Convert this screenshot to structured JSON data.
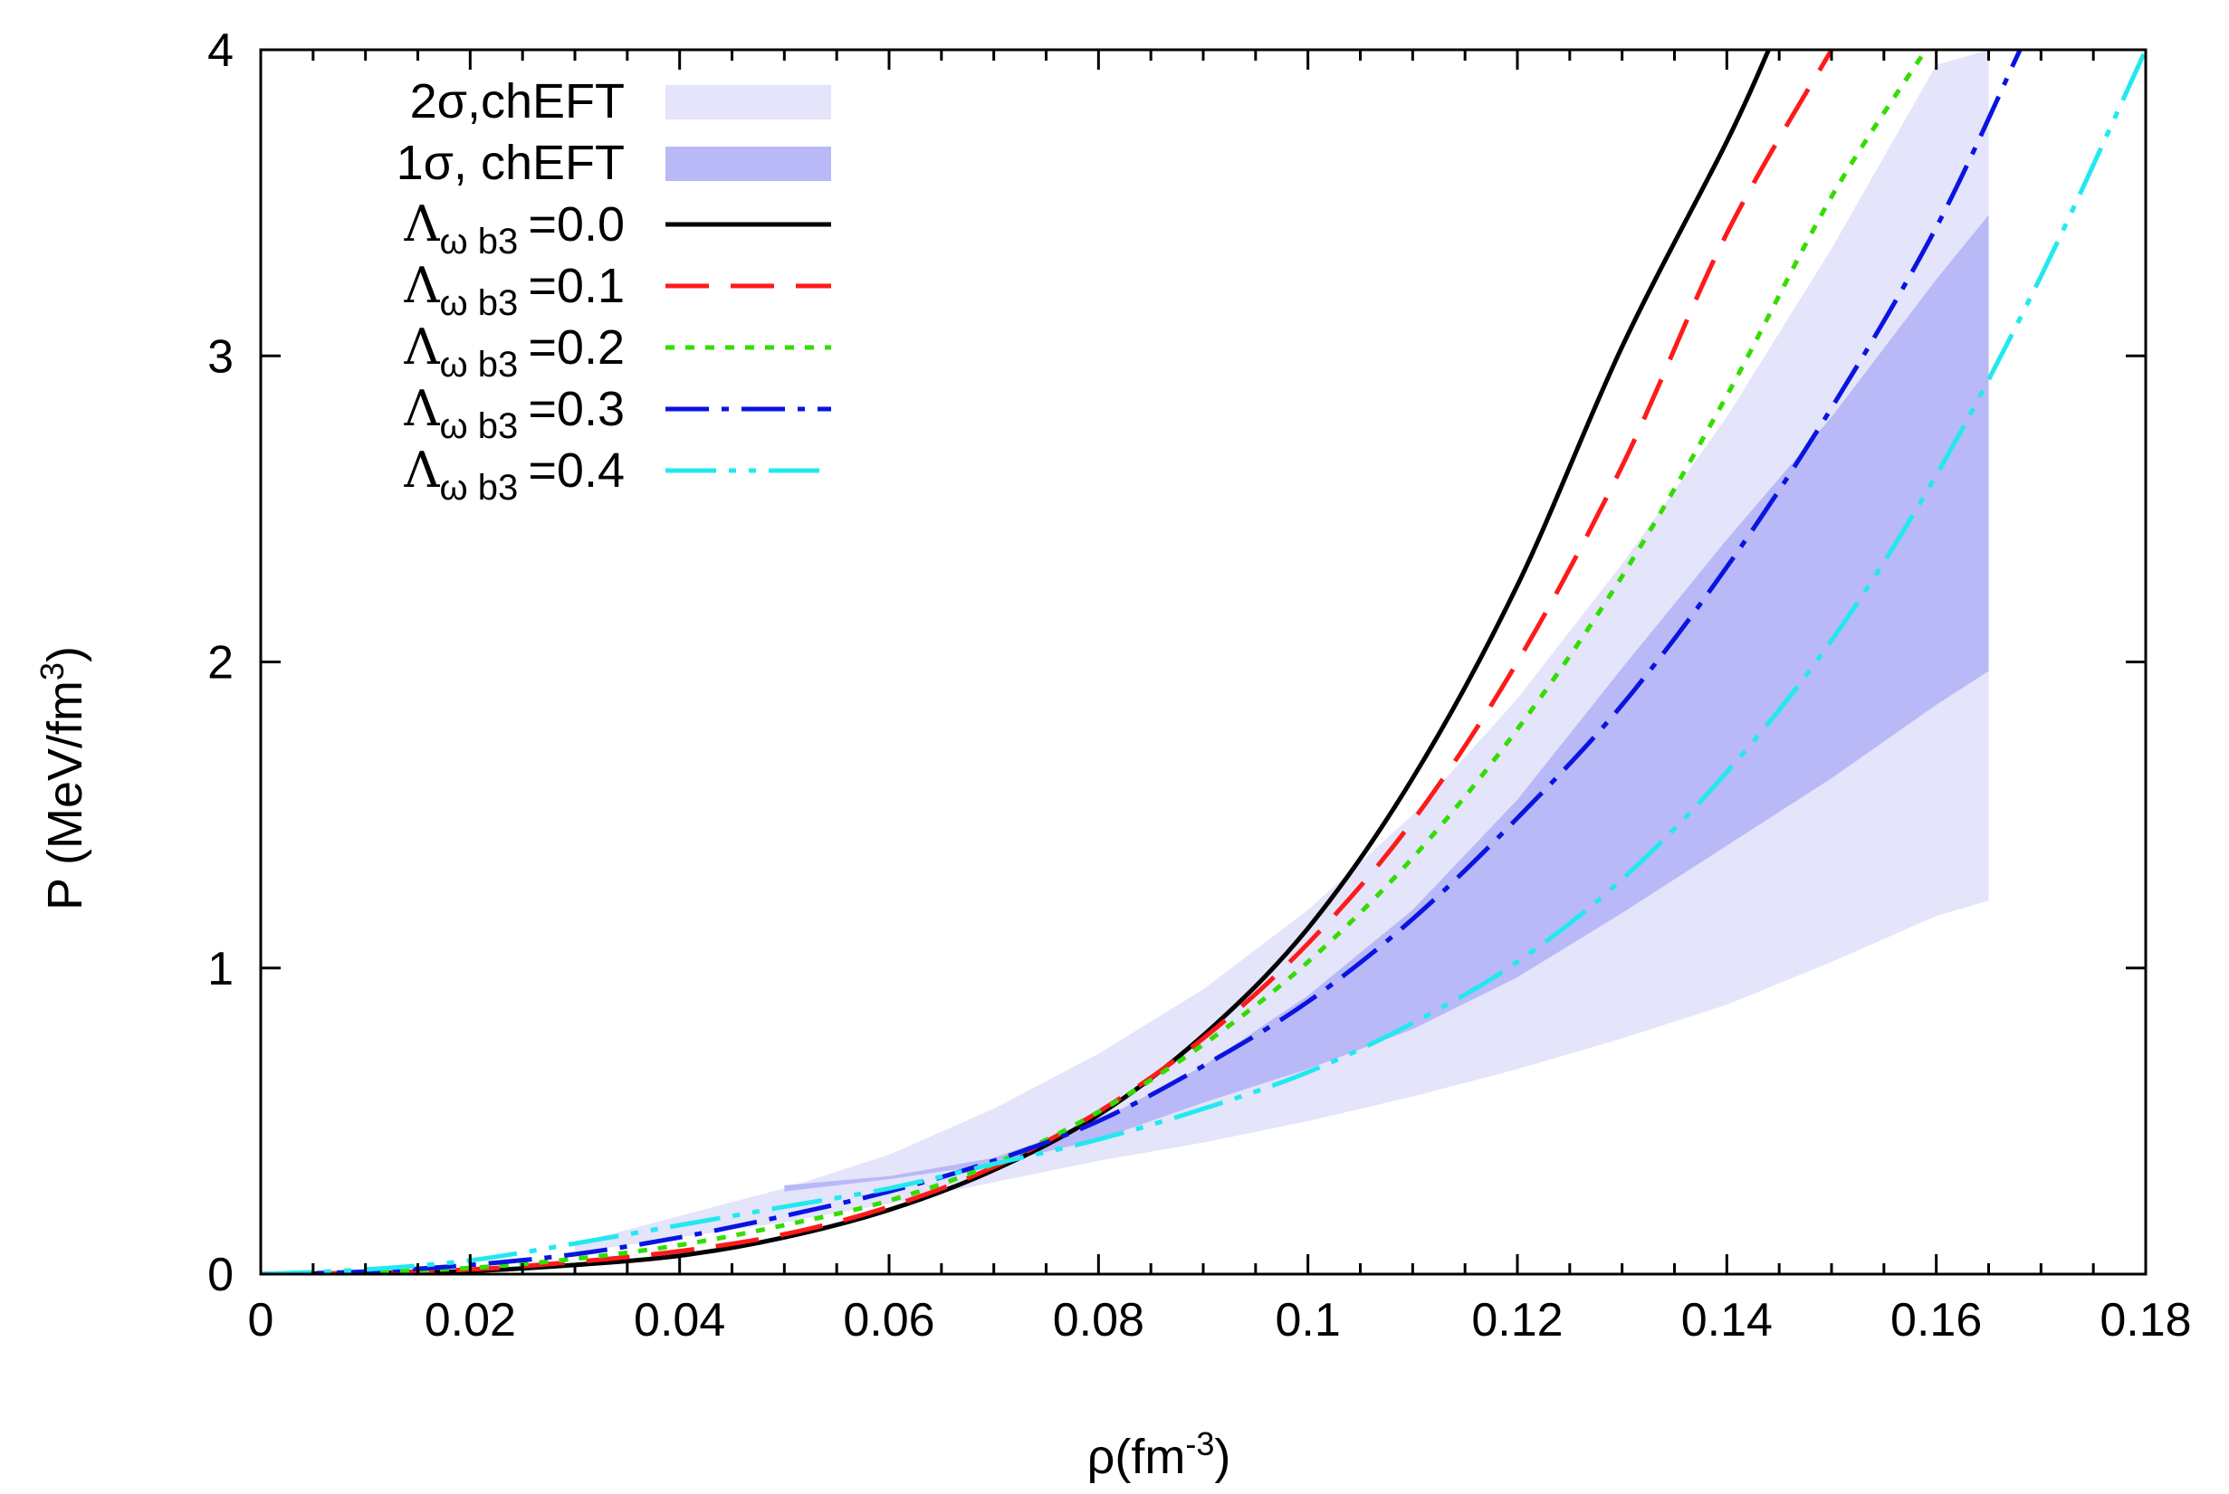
{
  "chart_data": {
    "type": "line",
    "xlabel": {
      "base": "ρ(fm",
      "sup": "-3",
      "end": ")"
    },
    "ylabel": {
      "base": "P (MeV/fm",
      "sup": "3",
      "end": ")"
    },
    "xlim": [
      0,
      0.18
    ],
    "ylim": [
      0,
      4
    ],
    "x_ticks": [
      {
        "value": 0,
        "label": "0"
      },
      {
        "value": 0.02,
        "label": "0.02"
      },
      {
        "value": 0.04,
        "label": "0.04"
      },
      {
        "value": 0.06,
        "label": "0.06"
      },
      {
        "value": 0.08,
        "label": "0.08"
      },
      {
        "value": 0.1,
        "label": "0.1"
      },
      {
        "value": 0.12,
        "label": "0.12"
      },
      {
        "value": 0.14,
        "label": "0.14"
      },
      {
        "value": 0.16,
        "label": "0.16"
      },
      {
        "value": 0.18,
        "label": "0.18"
      }
    ],
    "x_minor_step": 0.005,
    "y_ticks": [
      {
        "value": 0,
        "label": "0"
      },
      {
        "value": 1,
        "label": "1"
      },
      {
        "value": 2,
        "label": "2"
      },
      {
        "value": 3,
        "label": "3"
      },
      {
        "value": 4,
        "label": "4"
      }
    ],
    "legend_position": "top-left",
    "bands": [
      {
        "name": "2σ,chEFT",
        "label": "2σ,chEFT",
        "color": "#e4e4fa",
        "x": [
          0.03,
          0.04,
          0.05,
          0.06,
          0.07,
          0.08,
          0.09,
          0.1,
          0.11,
          0.12,
          0.13,
          0.14,
          0.15,
          0.16,
          0.165
        ],
        "lower": [
          0.07,
          0.12,
          0.17,
          0.23,
          0.3,
          0.37,
          0.43,
          0.5,
          0.58,
          0.67,
          0.77,
          0.88,
          1.02,
          1.17,
          1.22
        ],
        "upper": [
          0.1,
          0.19,
          0.28,
          0.39,
          0.54,
          0.72,
          0.93,
          1.19,
          1.5,
          1.88,
          2.32,
          2.8,
          3.35,
          3.95,
          4.0
        ]
      },
      {
        "name": "1σ, chEFT",
        "label": "1σ, chEFT",
        "color": "#b9b9f7",
        "x": [
          0.05,
          0.06,
          0.07,
          0.08,
          0.09,
          0.1,
          0.11,
          0.12,
          0.13,
          0.14,
          0.15,
          0.16,
          0.165
        ],
        "lower": [
          0.27,
          0.31,
          0.36,
          0.44,
          0.56,
          0.67,
          0.8,
          0.97,
          1.18,
          1.4,
          1.62,
          1.86,
          1.97
        ],
        "upper": [
          0.29,
          0.32,
          0.38,
          0.5,
          0.68,
          0.91,
          1.19,
          1.55,
          1.98,
          2.4,
          2.8,
          3.25,
          3.46
        ]
      }
    ],
    "series": [
      {
        "name": "lambda-0.0",
        "label_prefix": "Λ",
        "label_sub": "ω b3",
        "label_value": "=0.0",
        "color": "#000000",
        "dash": "",
        "x": [
          0,
          0.01,
          0.02,
          0.03,
          0.04,
          0.05,
          0.06,
          0.07,
          0.08,
          0.09,
          0.1,
          0.11,
          0.12,
          0.13,
          0.14,
          0.144
        ],
        "y": [
          0,
          0.003,
          0.01,
          0.03,
          0.06,
          0.12,
          0.21,
          0.34,
          0.52,
          0.78,
          1.13,
          1.62,
          2.25,
          3.03,
          3.7,
          4.0
        ]
      },
      {
        "name": "lambda-0.1",
        "label_prefix": "Λ",
        "label_sub": "ω b3",
        "label_value": "=0.1",
        "color": "#ff1a1a",
        "dash": "48 24",
        "x": [
          0,
          0.01,
          0.02,
          0.03,
          0.04,
          0.05,
          0.06,
          0.07,
          0.08,
          0.09,
          0.1,
          0.11,
          0.12,
          0.13,
          0.14,
          0.15
        ],
        "y": [
          0,
          0.004,
          0.015,
          0.04,
          0.075,
          0.13,
          0.22,
          0.35,
          0.53,
          0.77,
          1.08,
          1.48,
          2.0,
          2.64,
          3.4,
          4.0
        ]
      },
      {
        "name": "lambda-0.2",
        "label_prefix": "Λ",
        "label_sub": "ω b3",
        "label_value": "=0.2",
        "color": "#33dd00",
        "dash": "10 12",
        "x": [
          0,
          0.01,
          0.02,
          0.03,
          0.04,
          0.05,
          0.06,
          0.07,
          0.08,
          0.09,
          0.1,
          0.11,
          0.12,
          0.13,
          0.14,
          0.15,
          0.159
        ],
        "y": [
          0,
          0.006,
          0.02,
          0.05,
          0.095,
          0.16,
          0.24,
          0.36,
          0.53,
          0.75,
          1.02,
          1.36,
          1.78,
          2.28,
          2.87,
          3.52,
          4.0
        ]
      },
      {
        "name": "lambda-0.3",
        "label_prefix": "Λ",
        "label_sub": "ω b3",
        "label_value": "=0.3",
        "color": "#0a14e0",
        "dash": "48 14 8 14",
        "x": [
          0,
          0.01,
          0.02,
          0.03,
          0.04,
          0.05,
          0.06,
          0.07,
          0.08,
          0.09,
          0.1,
          0.11,
          0.12,
          0.13,
          0.14,
          0.15,
          0.16,
          0.168
        ],
        "y": [
          0,
          0.008,
          0.03,
          0.065,
          0.12,
          0.19,
          0.27,
          0.37,
          0.5,
          0.68,
          0.89,
          1.16,
          1.49,
          1.86,
          2.31,
          2.83,
          3.42,
          4.0
        ]
      },
      {
        "name": "lambda-0.4",
        "label_prefix": "Λ",
        "label_sub": "ω b3",
        "label_value": "=0.4",
        "color": "#22e8f0",
        "dash": "56 14 8 14 8 14",
        "x": [
          0,
          0.01,
          0.02,
          0.03,
          0.04,
          0.05,
          0.06,
          0.07,
          0.08,
          0.09,
          0.1,
          0.11,
          0.12,
          0.13,
          0.14,
          0.15,
          0.16,
          0.17,
          0.18
        ],
        "y": [
          0,
          0.015,
          0.045,
          0.1,
          0.16,
          0.22,
          0.28,
          0.36,
          0.44,
          0.54,
          0.66,
          0.82,
          1.02,
          1.29,
          1.64,
          2.07,
          2.61,
          3.26,
          4.0
        ]
      }
    ]
  }
}
